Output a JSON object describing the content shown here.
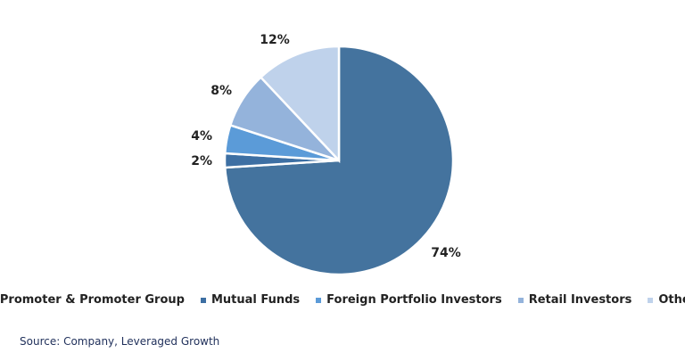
{
  "chart_data": {
    "type": "pie",
    "categories": [
      "Promoter & Promoter Group",
      "Mutual Funds",
      "Foreign Portfolio Investors",
      "Retail Investors",
      "Other"
    ],
    "values": [
      74,
      2,
      4,
      8,
      12
    ],
    "data_labels": [
      "74%",
      "2%",
      "4%",
      "8%",
      "12%"
    ],
    "colors": [
      "#44739e",
      "#3d6fa3",
      "#5b9bd8",
      "#94b3db",
      "#bfd2eb"
    ],
    "start_angle": "12 o'clock",
    "direction": "clockwise",
    "legend_position": "bottom"
  },
  "source": "Source: Company, Leveraged Growth"
}
